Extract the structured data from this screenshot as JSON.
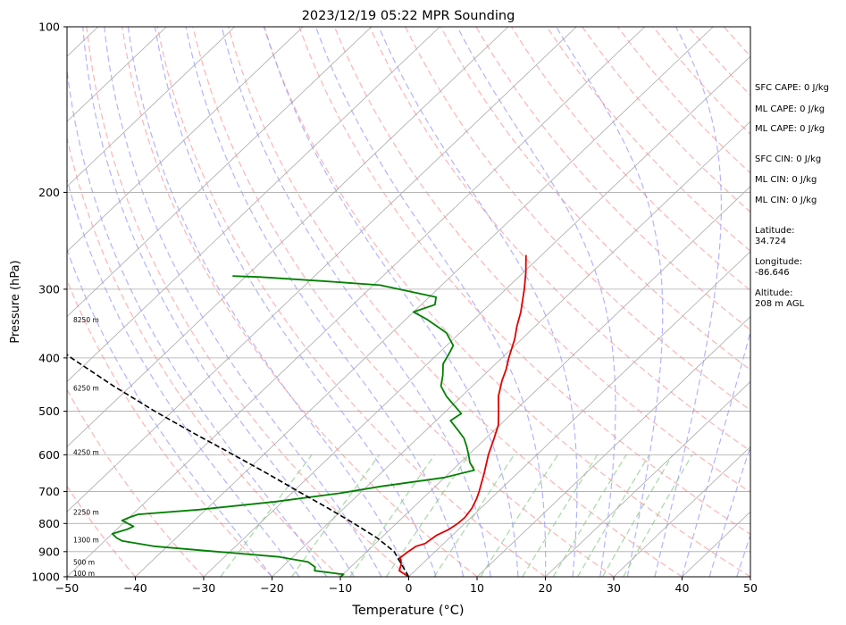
{
  "chart_data": {
    "type": "line",
    "title": "2023/12/19 05:22 MPR Sounding",
    "xlabel": "Temperature (°C)",
    "ylabel": "Pressure (hPa)",
    "xlim": [
      -50,
      50
    ],
    "ylim": [
      1000,
      100
    ],
    "y_scale": "log",
    "x_ticks": [
      "−50",
      "−40",
      "−30",
      "−20",
      "−10",
      "0",
      "10",
      "20",
      "30",
      "40",
      "50"
    ],
    "x_tick_values": [
      -50,
      -40,
      -30,
      -20,
      -10,
      0,
      10,
      20,
      30,
      40,
      50
    ],
    "y_ticks": [
      "1000",
      "900",
      "800",
      "700",
      "600",
      "500",
      "400",
      "300",
      "200",
      "100"
    ],
    "y_tick_values": [
      1000,
      900,
      800,
      700,
      600,
      500,
      400,
      300,
      200,
      100
    ],
    "grid": true,
    "skew": true,
    "series": [
      {
        "role": "temperature",
        "color": "#e00000",
        "points": [
          [
            1000,
            0.0
          ],
          [
            975,
            -2.3
          ],
          [
            950,
            -3.0
          ],
          [
            930,
            -3.8
          ],
          [
            925,
            -4.2
          ],
          [
            905,
            -4.0
          ],
          [
            880,
            -3.6
          ],
          [
            870,
            -2.7
          ],
          [
            840,
            -2.3
          ],
          [
            820,
            -1.4
          ],
          [
            800,
            -1.0
          ],
          [
            780,
            -0.9
          ],
          [
            750,
            -1.3
          ],
          [
            720,
            -2.1
          ],
          [
            700,
            -2.8
          ],
          [
            650,
            -4.8
          ],
          [
            600,
            -7.1
          ],
          [
            560,
            -8.8
          ],
          [
            530,
            -10.2
          ],
          [
            500,
            -12.3
          ],
          [
            470,
            -14.6
          ],
          [
            440,
            -16.5
          ],
          [
            420,
            -17.6
          ],
          [
            400,
            -19.0
          ],
          [
            370,
            -21.0
          ],
          [
            350,
            -22.7
          ],
          [
            330,
            -24.3
          ],
          [
            300,
            -27.3
          ],
          [
            280,
            -29.6
          ],
          [
            260,
            -32.3
          ]
        ]
      },
      {
        "role": "dewpoint",
        "color": "#008000",
        "points": [
          [
            1000,
            -10.0
          ],
          [
            990,
            -9.9
          ],
          [
            975,
            -14.7
          ],
          [
            960,
            -15.2
          ],
          [
            940,
            -17.0
          ],
          [
            920,
            -22.0
          ],
          [
            900,
            -32.0
          ],
          [
            880,
            -42.0
          ],
          [
            860,
            -47.5
          ],
          [
            850,
            -48.7
          ],
          [
            835,
            -50.0
          ],
          [
            820,
            -48.5
          ],
          [
            810,
            -48.0
          ],
          [
            790,
            -50.6
          ],
          [
            780,
            -50.0
          ],
          [
            770,
            -49.2
          ],
          [
            755,
            -41.0
          ],
          [
            730,
            -31.0
          ],
          [
            705,
            -23.0
          ],
          [
            685,
            -18.0
          ],
          [
            660,
            -10.0
          ],
          [
            640,
            -6.8
          ],
          [
            620,
            -8.6
          ],
          [
            600,
            -10.0
          ],
          [
            580,
            -11.5
          ],
          [
            560,
            -13.2
          ],
          [
            545,
            -14.9
          ],
          [
            520,
            -17.9
          ],
          [
            505,
            -17.4
          ],
          [
            470,
            -22.2
          ],
          [
            450,
            -24.6
          ],
          [
            430,
            -26.0
          ],
          [
            410,
            -27.7
          ],
          [
            395,
            -28.3
          ],
          [
            380,
            -29.0
          ],
          [
            360,
            -32.0
          ],
          [
            340,
            -37.0
          ],
          [
            330,
            -40.0
          ],
          [
            320,
            -38.0
          ],
          [
            310,
            -39.0
          ],
          [
            295,
            -49.0
          ],
          [
            290,
            -58.0
          ],
          [
            285,
            -68.0
          ],
          [
            284,
            -72.0
          ]
        ]
      },
      {
        "role": "parcel",
        "color": "#000000",
        "style": "dashed",
        "points": [
          [
            1000,
            0.0
          ],
          [
            900,
            -6.0
          ],
          [
            850,
            -10.6
          ],
          [
            800,
            -16.2
          ],
          [
            750,
            -22.4
          ],
          [
            700,
            -29.2
          ],
          [
            650,
            -36.4
          ],
          [
            600,
            -44.4
          ],
          [
            550,
            -53.2
          ],
          [
            500,
            -62.6
          ],
          [
            450,
            -72.5
          ],
          [
            400,
            -83.0
          ],
          [
            350,
            -94.0
          ],
          [
            320,
            -101.0
          ]
        ]
      }
    ],
    "height_labels": [
      {
        "text": "100 m",
        "p": 988
      },
      {
        "text": "500 m",
        "p": 943
      },
      {
        "text": "1300 m",
        "p": 859
      },
      {
        "text": "2250 m",
        "p": 765
      },
      {
        "text": "4250 m",
        "p": 596
      },
      {
        "text": "6250 m",
        "p": 455
      },
      {
        "text": "8250 m",
        "p": 342
      }
    ],
    "indices": [
      "SFC CAPE: 0 J/kg",
      "ML CAPE: 0 J/kg",
      "ML CAPE: 0 J/kg",
      "SFC CIN: 0 J/kg",
      "ML CIN: 0 J/kg",
      "ML CIN: 0 J/kg",
      "Latitude:\n34.724",
      "Longitude:\n-86.646",
      "Altitude:\n208 m AGL"
    ],
    "background_lines": {
      "isotherm_color": "#aaaaaa",
      "dry_adiabat_color": "#ff9999",
      "moist_adiabat_color": "#9999ff",
      "mixing_ratio_color": "#88cc88"
    }
  }
}
